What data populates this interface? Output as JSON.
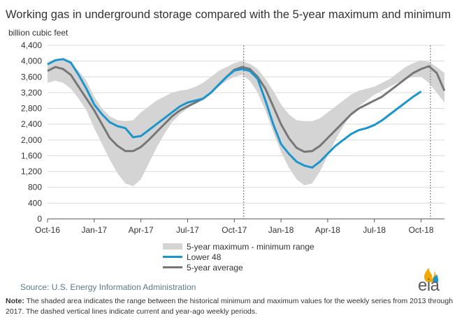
{
  "title": "Working gas in underground  storage compared with the 5-year maximum  and minimum",
  "unit_label": "billion cubic feet",
  "legend": {
    "range": "5-year maximum - minimum range",
    "lower48": "Lower 48",
    "avg": "5-year average"
  },
  "source": "Source:  U.S. Energy Information Administration",
  "note": {
    "label": "Note:",
    "text": " The shaded area indicates the range between the historical minimum and maximum values for the weekly series from 2013 through 2017. The dashed vertical lines indicate current and year-ago weekly periods."
  },
  "logo_text": "eia",
  "colors": {
    "lower48": "#1c95cd",
    "avg": "#777777",
    "range": "#d4d4d4",
    "logo_flame": "#f2a900",
    "logo_blue": "#1c95cd"
  },
  "chart_data": {
    "type": "area",
    "ylim": [
      0,
      4400
    ],
    "yticks": [
      0,
      400,
      800,
      1200,
      1600,
      2000,
      2400,
      2800,
      3200,
      3600,
      4000,
      4400
    ],
    "ytick_labels": [
      "0",
      "400",
      "800",
      "1,200",
      "1,600",
      "2,000",
      "2,400",
      "2,800",
      "3,200",
      "3,600",
      "4,000",
      "4,400"
    ],
    "xlim": [
      0,
      25.5
    ],
    "x_units": "months since Oct-16",
    "xticks": [
      0,
      3,
      6,
      9,
      12,
      15,
      18,
      21,
      24
    ],
    "xtick_labels": [
      "Oct-16",
      "Jan-17",
      "Apr-17",
      "Jul-17",
      "Oct-17",
      "Jan-18",
      "Apr-18",
      "Jul-18",
      "Oct-18"
    ],
    "dashed_vlines": [
      12.6,
      24.6
    ],
    "range_max": {
      "x": [
        0,
        0.5,
        1,
        1.5,
        2,
        2.5,
        3,
        3.5,
        4,
        4.5,
        5,
        5.5,
        6,
        6.5,
        7,
        7.5,
        8,
        8.5,
        9,
        9.5,
        10,
        10.5,
        11,
        11.5,
        12,
        12.5,
        13,
        13.5,
        14,
        14.5,
        15,
        15.5,
        16,
        16.5,
        17,
        17.5,
        18,
        18.5,
        19,
        19.5,
        20,
        20.5,
        21,
        21.5,
        22,
        22.5,
        23,
        23.5,
        24,
        24.5,
        25,
        25.5
      ],
      "y": [
        3950,
        4030,
        4050,
        3960,
        3750,
        3500,
        3100,
        2800,
        2600,
        2500,
        2480,
        2500,
        2700,
        2850,
        3000,
        3100,
        3200,
        3250,
        3280,
        3350,
        3450,
        3600,
        3750,
        3850,
        3950,
        4000,
        3930,
        3800,
        3550,
        3250,
        2900,
        2650,
        2500,
        2480,
        2480,
        2550,
        2700,
        2850,
        3000,
        3150,
        3250,
        3300,
        3350,
        3450,
        3550,
        3700,
        3850,
        3950,
        4020,
        3980,
        3850,
        3700
      ]
    },
    "range_min": {
      "x": [
        0,
        0.5,
        1,
        1.5,
        2,
        2.5,
        3,
        3.5,
        4,
        4.5,
        5,
        5.5,
        6,
        6.5,
        7,
        7.5,
        8,
        8.5,
        9,
        9.5,
        10,
        10.5,
        11,
        11.5,
        12,
        12.5,
        13,
        13.5,
        14,
        14.5,
        15,
        15.5,
        16,
        16.5,
        17,
        17.5,
        18,
        18.5,
        19,
        19.5,
        20,
        20.5,
        21,
        21.5,
        22,
        22.5,
        23,
        23.5,
        24,
        24.5,
        25,
        25.5
      ],
      "y": [
        3450,
        3500,
        3450,
        3300,
        3050,
        2750,
        2300,
        1900,
        1500,
        1150,
        900,
        830,
        1000,
        1400,
        1800,
        2150,
        2450,
        2650,
        2800,
        2950,
        3050,
        3200,
        3350,
        3500,
        3600,
        3650,
        3500,
        3200,
        2750,
        2200,
        1700,
        1300,
        1000,
        850,
        900,
        1200,
        1600,
        2000,
        2350,
        2650,
        2850,
        3000,
        3150,
        3250,
        3350,
        3450,
        3550,
        3600,
        3600,
        3450,
        3200,
        2950
      ]
    },
    "series": [
      {
        "name": "Lower 48",
        "x": [
          0,
          0.5,
          1,
          1.5,
          2,
          2.5,
          3,
          3.5,
          4,
          4.5,
          5,
          5.5,
          6,
          6.5,
          7,
          7.5,
          8,
          8.5,
          9,
          9.5,
          10,
          10.5,
          11,
          11.5,
          12,
          12.5,
          13,
          13.5,
          14,
          14.5,
          15,
          15.5,
          16,
          16.5,
          17,
          17.5,
          18,
          18.5,
          19,
          19.5,
          20,
          20.5,
          21,
          21.5,
          22,
          22.5,
          23,
          23.5,
          24
        ],
        "y": [
          3920,
          4020,
          4050,
          3960,
          3650,
          3300,
          2900,
          2650,
          2450,
          2350,
          2300,
          2070,
          2100,
          2250,
          2400,
          2550,
          2700,
          2850,
          2950,
          3000,
          3050,
          3200,
          3400,
          3600,
          3760,
          3800,
          3750,
          3550,
          3000,
          2400,
          1900,
          1650,
          1450,
          1350,
          1300,
          1450,
          1650,
          1850,
          2000,
          2150,
          2250,
          2300,
          2380,
          2500,
          2650,
          2800,
          2950,
          3100,
          3230
        ]
      },
      {
        "name": "5-year average",
        "x": [
          0,
          0.5,
          1,
          1.5,
          2,
          2.5,
          3,
          3.5,
          4,
          4.5,
          5,
          5.5,
          6,
          6.5,
          7,
          7.5,
          8,
          8.5,
          9,
          9.5,
          10,
          10.5,
          11,
          11.5,
          12,
          12.5,
          13,
          13.5,
          14,
          14.5,
          15,
          15.5,
          16,
          16.5,
          17,
          17.5,
          18,
          18.5,
          19,
          19.5,
          20,
          20.5,
          21,
          21.5,
          22,
          22.5,
          23,
          23.5,
          24,
          24.5,
          25,
          25.5
        ],
        "y": [
          3750,
          3850,
          3800,
          3650,
          3350,
          3050,
          2750,
          2400,
          2050,
          1850,
          1720,
          1720,
          1820,
          2000,
          2200,
          2400,
          2600,
          2750,
          2850,
          2950,
          3050,
          3200,
          3400,
          3600,
          3780,
          3850,
          3800,
          3600,
          3300,
          2850,
          2400,
          2050,
          1800,
          1700,
          1720,
          1850,
          2050,
          2250,
          2450,
          2650,
          2800,
          2900,
          3000,
          3100,
          3250,
          3400,
          3550,
          3700,
          3800,
          3870,
          3700,
          3250
        ]
      }
    ]
  }
}
